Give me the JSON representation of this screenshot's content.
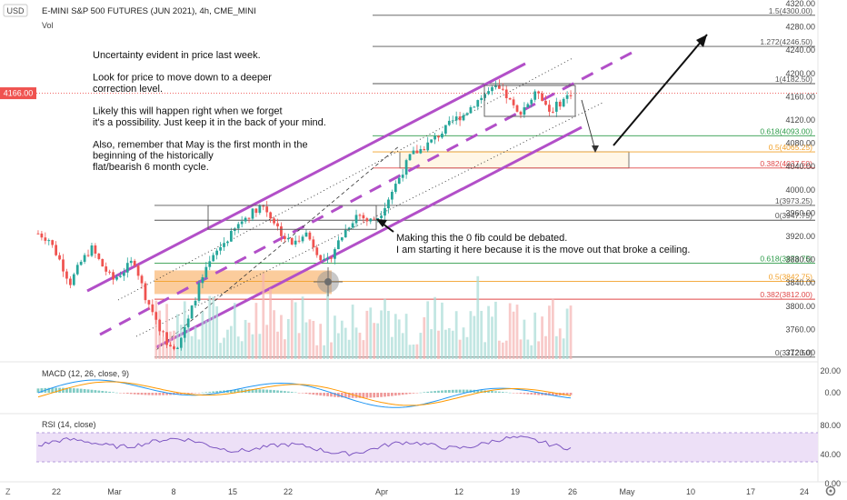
{
  "header": {
    "title": "E-MINI S&P 500 FUTURES (JUN 2021), 4h, CME_MINI",
    "currency": "USD",
    "vol_label": "Vol",
    "last_price": "4166.00"
  },
  "annotations": {
    "main_notes": [
      "Uncertainty evident in price last week.",
      "",
      "Look for price to move down to a deeper",
      "correction level.",
      "",
      "Likely this will happen right when we forget",
      "it's a possibility. Just keep it in the back of your mind.",
      "",
      "Also, remember that May is the first month in the",
      "beginning of the historically",
      "flat/bearish 6 month cycle."
    ],
    "fib_note": [
      "Making this the 0 fib could be debated.",
      "I am starting it here because it is the move out that broke a ceiling."
    ]
  },
  "fib_upper": [
    {
      "label": "1.5(4300.00)",
      "price": 4300.0,
      "color": "#555555"
    },
    {
      "label": "1.272(4246.50)",
      "price": 4246.5,
      "color": "#555555"
    },
    {
      "label": "1(4182.50)",
      "price": 4182.5,
      "color": "#555555"
    },
    {
      "label": "0.618(4093.00)",
      "price": 4093.0,
      "color": "#2e9c4a"
    },
    {
      "label": "0.5(4065.25)",
      "price": 4065.25,
      "color": "#f2a12a"
    },
    {
      "label": "0.382(4037.50)",
      "price": 4037.5,
      "color": "#e04848"
    }
  ],
  "fib_lower": [
    {
      "label": "1(3973.25)",
      "price": 3973.25,
      "color": "#555555"
    },
    {
      "label": "0(3947.75)",
      "price": 3947.75,
      "color": "#555555"
    },
    {
      "label": "0.618(3873.75)",
      "price": 3873.75,
      "color": "#2e9c4a"
    },
    {
      "label": "0.5(3842.75)",
      "price": 3842.75,
      "color": "#f2a12a"
    },
    {
      "label": "0.382(3812.00)",
      "price": 3812.0,
      "color": "#e04848"
    },
    {
      "label": "0(3712.50)",
      "price": 3712.5,
      "color": "#555555"
    }
  ],
  "price_axis": {
    "ticks": [
      "4320.00",
      "4280.00",
      "4240.00",
      "4200.00",
      "4160.00",
      "4120.00",
      "4080.00",
      "4040.00",
      "4000.00",
      "3960.00",
      "3920.00",
      "3880.00",
      "3840.00",
      "3800.00",
      "3760.00",
      "3720.00"
    ],
    "values": [
      4320,
      4280,
      4240,
      4200,
      4160,
      4120,
      4080,
      4040,
      4000,
      3960,
      3920,
      3880,
      3840,
      3800,
      3760,
      3720
    ]
  },
  "time_axis": {
    "labels": [
      "22",
      "Mar",
      "8",
      "15",
      "22",
      "Apr",
      "12",
      "19",
      "26",
      "May",
      "10",
      "17",
      "24"
    ],
    "corner": "Z",
    "settings_icon": "gear-icon"
  },
  "macd": {
    "label": "MACD (12, 26, close, 9)",
    "ticks": [
      "20.00",
      "0.00"
    ],
    "values": [
      20,
      0
    ]
  },
  "rsi": {
    "label": "RSI (14, close)",
    "ticks": [
      "80.00",
      "40.00",
      "0.00"
    ],
    "values": [
      80,
      40,
      0
    ]
  },
  "colors": {
    "up": "#26a69a",
    "down": "#ef5350",
    "channel": "#b24fc8",
    "macd_line": "#2196f3",
    "signal_line": "#ff9800",
    "rsi_line": "#7e57c2",
    "rsi_band": "#ede0f7",
    "zone": "#f7a24a"
  },
  "chart_data": {
    "type": "candlestick",
    "title": "E-MINI S&P 500 FUTURES (JUN 2021), 4h, CME_MINI",
    "ylim": [
      3700,
      4330
    ],
    "close_path_approx": [
      [
        0.0,
        3925
      ],
      [
        0.02,
        3915
      ],
      [
        0.04,
        3880
      ],
      [
        0.06,
        3840
      ],
      [
        0.08,
        3875
      ],
      [
        0.1,
        3900
      ],
      [
        0.12,
        3870
      ],
      [
        0.14,
        3845
      ],
      [
        0.16,
        3860
      ],
      [
        0.18,
        3880
      ],
      [
        0.2,
        3820
      ],
      [
        0.22,
        3780
      ],
      [
        0.24,
        3740
      ],
      [
        0.26,
        3730
      ],
      [
        0.28,
        3770
      ],
      [
        0.3,
        3830
      ],
      [
        0.32,
        3870
      ],
      [
        0.34,
        3900
      ],
      [
        0.36,
        3920
      ],
      [
        0.38,
        3945
      ],
      [
        0.4,
        3960
      ],
      [
        0.42,
        3975
      ],
      [
        0.44,
        3950
      ],
      [
        0.46,
        3920
      ],
      [
        0.48,
        3905
      ],
      [
        0.5,
        3930
      ],
      [
        0.52,
        3900
      ],
      [
        0.54,
        3870
      ],
      [
        0.56,
        3905
      ],
      [
        0.58,
        3935
      ],
      [
        0.6,
        3960
      ],
      [
        0.62,
        3945
      ],
      [
        0.64,
        3955
      ],
      [
        0.66,
        3990
      ],
      [
        0.68,
        4025
      ],
      [
        0.7,
        4060
      ],
      [
        0.72,
        4070
      ],
      [
        0.74,
        4085
      ],
      [
        0.76,
        4100
      ],
      [
        0.78,
        4120
      ],
      [
        0.8,
        4130
      ],
      [
        0.82,
        4150
      ],
      [
        0.84,
        4165
      ],
      [
        0.86,
        4175
      ],
      [
        0.88,
        4160
      ],
      [
        0.9,
        4130
      ],
      [
        0.92,
        4150
      ],
      [
        0.94,
        4170
      ],
      [
        0.96,
        4135
      ],
      [
        0.98,
        4150
      ],
      [
        1.0,
        4166
      ]
    ]
  }
}
